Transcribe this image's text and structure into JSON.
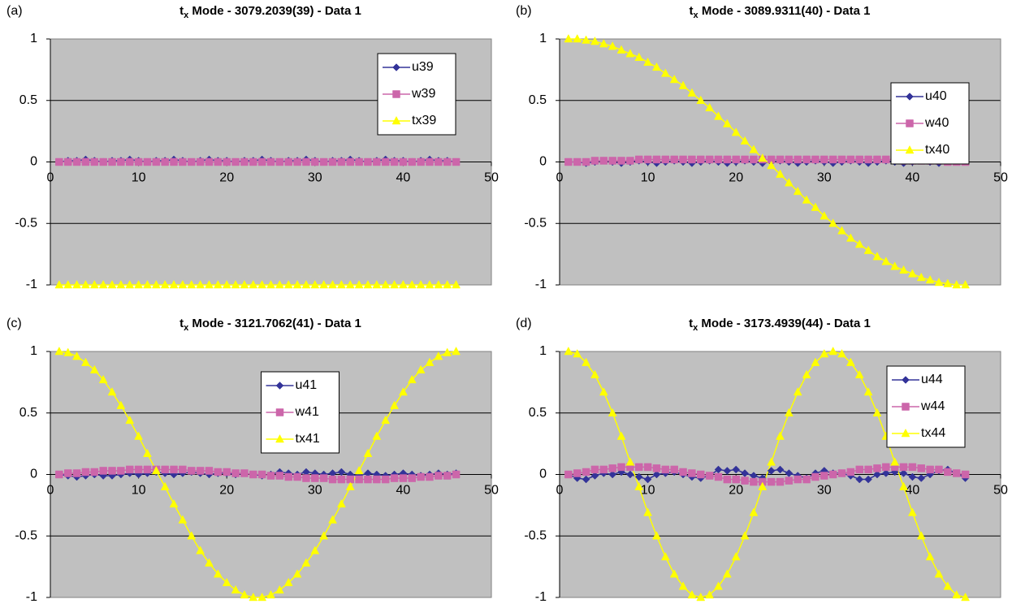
{
  "chart_data": [
    {
      "type": "line",
      "panel_label": "(a)",
      "title_prefix": "t",
      "title_subscript": "x",
      "title": " Mode - 3079.2039(39) - Data 1",
      "x": [
        1,
        2,
        3,
        4,
        5,
        6,
        7,
        8,
        9,
        10,
        11,
        12,
        13,
        14,
        15,
        16,
        17,
        18,
        19,
        20,
        21,
        22,
        23,
        24,
        25,
        26,
        27,
        28,
        29,
        30,
        31,
        32,
        33,
        34,
        35,
        36,
        37,
        38,
        39,
        40,
        41,
        42,
        43,
        44,
        45,
        46
      ],
      "xlim": [
        0,
        50
      ],
      "xticks": [
        0,
        10,
        20,
        30,
        40,
        50
      ],
      "ylim": [
        -1,
        1
      ],
      "yticks": [
        -1,
        -0.5,
        0,
        0.5,
        1
      ],
      "grid": true,
      "legend": "upper right",
      "series": [
        {
          "name": "u39",
          "color": "#333399",
          "marker": "diamond",
          "values": [
            0,
            0.01,
            0.01,
            0.02,
            0.01,
            0,
            0.01,
            0.01,
            0.02,
            0.01,
            0,
            0.01,
            0.01,
            0.02,
            0.01,
            0,
            0.01,
            0.02,
            0.01,
            0.01,
            0,
            0.01,
            0.01,
            0.02,
            0.01,
            0,
            0.01,
            0.01,
            0.02,
            0.01,
            0,
            0.01,
            0.01,
            0.02,
            0.01,
            0,
            0.01,
            0.02,
            0.01,
            0.01,
            0,
            0.01,
            0.02,
            0.01,
            0.01,
            0
          ]
        },
        {
          "name": "w39",
          "color": "#cc66aa",
          "marker": "square",
          "values": [
            0,
            0,
            0,
            0,
            0,
            0,
            0,
            0,
            0,
            0,
            0,
            0,
            0,
            0,
            0,
            0,
            0,
            0,
            0,
            0,
            0,
            0,
            0,
            0,
            0,
            0,
            0,
            0,
            0,
            0,
            0,
            0,
            0,
            0,
            0,
            0,
            0,
            0,
            0,
            0,
            0,
            0,
            0,
            0,
            0,
            0
          ]
        },
        {
          "name": "tx39",
          "color": "#ffff00",
          "marker": "triangle",
          "values": [
            -1,
            -1,
            -1,
            -1,
            -1,
            -1,
            -1,
            -1,
            -1,
            -1,
            -1,
            -1,
            -1,
            -1,
            -1,
            -1,
            -1,
            -1,
            -1,
            -1,
            -1,
            -1,
            -1,
            -1,
            -1,
            -1,
            -1,
            -1,
            -1,
            -1,
            -1,
            -1,
            -1,
            -1,
            -1,
            -1,
            -1,
            -1,
            -1,
            -1,
            -1,
            -1,
            -1,
            -1,
            -1,
            -1
          ]
        }
      ]
    },
    {
      "type": "line",
      "panel_label": "(b)",
      "title_prefix": "t",
      "title_subscript": "x",
      "title": " Mode - 3089.9311(40) - Data 1",
      "x": [
        1,
        2,
        3,
        4,
        5,
        6,
        7,
        8,
        9,
        10,
        11,
        12,
        13,
        14,
        15,
        16,
        17,
        18,
        19,
        20,
        21,
        22,
        23,
        24,
        25,
        26,
        27,
        28,
        29,
        30,
        31,
        32,
        33,
        34,
        35,
        36,
        37,
        38,
        39,
        40,
        41,
        42,
        43,
        44,
        45,
        46
      ],
      "xlim": [
        0,
        50
      ],
      "xticks": [
        0,
        10,
        20,
        30,
        40,
        50
      ],
      "ylim": [
        -1,
        1
      ],
      "yticks": [
        -1,
        -0.5,
        0,
        0.5,
        1
      ],
      "grid": true,
      "legend": "right",
      "series": [
        {
          "name": "u40",
          "color": "#333399",
          "marker": "diamond",
          "values": [
            0,
            0,
            -0.01,
            0,
            0.01,
            0,
            -0.01,
            0,
            0.01,
            0,
            -0.01,
            0,
            0.01,
            0,
            -0.01,
            0,
            0.01,
            0,
            -0.01,
            0,
            0.01,
            0,
            -0.01,
            0,
            0.01,
            0,
            -0.01,
            0,
            0.01,
            0,
            -0.01,
            0,
            0.01,
            0,
            -0.01,
            0,
            0.01,
            0,
            -0.01,
            0,
            0.01,
            0,
            -0.01,
            0,
            0.01,
            0.01
          ]
        },
        {
          "name": "w40",
          "color": "#cc66aa",
          "marker": "square",
          "values": [
            0,
            0,
            0,
            0.01,
            0.01,
            0.01,
            0.01,
            0.01,
            0.02,
            0.02,
            0.02,
            0.02,
            0.02,
            0.02,
            0.02,
            0.02,
            0.02,
            0.02,
            0.02,
            0.02,
            0.02,
            0.02,
            0.02,
            0.02,
            0.02,
            0.02,
            0.02,
            0.02,
            0.02,
            0.02,
            0.02,
            0.02,
            0.02,
            0.02,
            0.02,
            0.02,
            0.02,
            0.02,
            0.01,
            0.01,
            0.01,
            0.01,
            0.01,
            0,
            0,
            0
          ]
        },
        {
          "name": "tx40",
          "color": "#ffff00",
          "marker": "triangle",
          "values": [
            1,
            1,
            0.99,
            0.98,
            0.96,
            0.94,
            0.91,
            0.88,
            0.85,
            0.81,
            0.77,
            0.72,
            0.67,
            0.62,
            0.56,
            0.5,
            0.44,
            0.37,
            0.31,
            0.24,
            0.17,
            0.1,
            0.03,
            -0.03,
            -0.1,
            -0.17,
            -0.24,
            -0.31,
            -0.37,
            -0.44,
            -0.5,
            -0.56,
            -0.62,
            -0.67,
            -0.72,
            -0.77,
            -0.81,
            -0.85,
            -0.88,
            -0.91,
            -0.94,
            -0.96,
            -0.98,
            -0.99,
            -1,
            -1
          ]
        }
      ]
    },
    {
      "type": "line",
      "panel_label": "(c)",
      "title_prefix": "t",
      "title_subscript": "x",
      "title": " Mode - 3121.7062(41) - Data 1",
      "x": [
        1,
        2,
        3,
        4,
        5,
        6,
        7,
        8,
        9,
        10,
        11,
        12,
        13,
        14,
        15,
        16,
        17,
        18,
        19,
        20,
        21,
        22,
        23,
        24,
        25,
        26,
        27,
        28,
        29,
        30,
        31,
        32,
        33,
        34,
        35,
        36,
        37,
        38,
        39,
        40,
        41,
        42,
        43,
        44,
        45,
        46
      ],
      "xlim": [
        0,
        50
      ],
      "xticks": [
        0,
        10,
        20,
        30,
        40,
        50
      ],
      "ylim": [
        -1,
        1
      ],
      "yticks": [
        -1,
        -0.5,
        0,
        0.5,
        1
      ],
      "grid": true,
      "legend": "center",
      "series": [
        {
          "name": "u41",
          "color": "#333399",
          "marker": "diamond",
          "values": [
            0,
            -0.01,
            -0.02,
            -0.01,
            0,
            -0.01,
            -0.01,
            0,
            0.01,
            0,
            0.01,
            0.02,
            0.01,
            0,
            0.01,
            0.02,
            0.01,
            0,
            0.01,
            0.01,
            0,
            0.01,
            0,
            -0.01,
            0,
            0.02,
            0.01,
            0,
            0.02,
            0.01,
            0,
            0.01,
            0.02,
            0,
            -0.01,
            0.01,
            0,
            -0.01,
            0,
            0.01,
            0,
            -0.01,
            0,
            0.01,
            0,
            0.01
          ]
        },
        {
          "name": "w41",
          "color": "#cc66aa",
          "marker": "square",
          "values": [
            0,
            0.01,
            0.01,
            0.02,
            0.02,
            0.03,
            0.03,
            0.03,
            0.04,
            0.04,
            0.04,
            0.04,
            0.04,
            0.04,
            0.04,
            0.03,
            0.03,
            0.03,
            0.02,
            0.02,
            0.01,
            0.01,
            0,
            0,
            -0.01,
            -0.01,
            -0.02,
            -0.02,
            -0.03,
            -0.03,
            -0.03,
            -0.04,
            -0.04,
            -0.04,
            -0.04,
            -0.04,
            -0.04,
            -0.04,
            -0.03,
            -0.03,
            -0.03,
            -0.02,
            -0.02,
            -0.01,
            -0.01,
            0
          ]
        },
        {
          "name": "tx41",
          "color": "#ffff00",
          "marker": "triangle",
          "values": [
            1,
            0.99,
            0.96,
            0.91,
            0.85,
            0.77,
            0.67,
            0.56,
            0.44,
            0.31,
            0.17,
            0.03,
            -0.1,
            -0.24,
            -0.37,
            -0.5,
            -0.62,
            -0.72,
            -0.81,
            -0.88,
            -0.94,
            -0.98,
            -1,
            -1,
            -0.98,
            -0.94,
            -0.88,
            -0.81,
            -0.72,
            -0.62,
            -0.5,
            -0.37,
            -0.24,
            -0.1,
            0.03,
            0.17,
            0.31,
            0.44,
            0.56,
            0.67,
            0.77,
            0.85,
            0.91,
            0.96,
            0.99,
            1
          ]
        }
      ]
    },
    {
      "type": "line",
      "panel_label": "(d)",
      "title_prefix": "t",
      "title_subscript": "x",
      "title": " Mode - 3173.4939(44) - Data 1",
      "x": [
        1,
        2,
        3,
        4,
        5,
        6,
        7,
        8,
        9,
        10,
        11,
        12,
        13,
        14,
        15,
        16,
        17,
        18,
        19,
        20,
        21,
        22,
        23,
        24,
        25,
        26,
        27,
        28,
        29,
        30,
        31,
        32,
        33,
        34,
        35,
        36,
        37,
        38,
        39,
        40,
        41,
        42,
        43,
        44,
        45,
        46
      ],
      "xlim": [
        0,
        50
      ],
      "xticks": [
        0,
        10,
        20,
        30,
        40,
        50
      ],
      "ylim": [
        -1,
        1
      ],
      "yticks": [
        -1,
        -0.5,
        0,
        0.5,
        1
      ],
      "grid": true,
      "legend": "upper right",
      "series": [
        {
          "name": "u44",
          "color": "#333399",
          "marker": "diamond",
          "values": [
            0,
            -0.03,
            -0.04,
            -0.01,
            0.01,
            0,
            0.02,
            0,
            -0.02,
            -0.04,
            0,
            0.01,
            0.02,
            0,
            -0.02,
            -0.03,
            -0.01,
            0.04,
            0.03,
            0.04,
            0.01,
            -0.01,
            -0.03,
            0.03,
            0.04,
            0.01,
            -0.01,
            -0.03,
            0.01,
            0.03,
            0.01,
            0.01,
            -0.01,
            -0.04,
            -0.04,
            0,
            0.01,
            0.02,
            0.01,
            -0.02,
            -0.03,
            0,
            0.03,
            0.04,
            0.01,
            -0.03
          ]
        },
        {
          "name": "w44",
          "color": "#cc66aa",
          "marker": "square",
          "values": [
            0,
            0.01,
            0.02,
            0.04,
            0.04,
            0.05,
            0.06,
            0.06,
            0.06,
            0.06,
            0.05,
            0.04,
            0.04,
            0.02,
            0.01,
            0,
            -0.01,
            -0.02,
            -0.04,
            -0.04,
            -0.05,
            -0.06,
            -0.06,
            -0.06,
            -0.06,
            -0.05,
            -0.04,
            -0.04,
            -0.02,
            -0.01,
            0,
            0.01,
            0.02,
            0.04,
            0.04,
            0.05,
            0.06,
            0.06,
            0.06,
            0.06,
            0.05,
            0.04,
            0.04,
            0.02,
            0.01,
            0
          ]
        },
        {
          "name": "tx44",
          "color": "#ffff00",
          "marker": "triangle",
          "values": [
            1,
            0.98,
            0.91,
            0.81,
            0.67,
            0.5,
            0.31,
            0.1,
            -0.1,
            -0.31,
            -0.5,
            -0.67,
            -0.81,
            -0.91,
            -0.98,
            -1,
            -0.98,
            -0.91,
            -0.81,
            -0.67,
            -0.5,
            -0.31,
            -0.1,
            0.1,
            0.31,
            0.5,
            0.67,
            0.81,
            0.91,
            0.98,
            1,
            0.98,
            0.91,
            0.81,
            0.67,
            0.5,
            0.31,
            0.1,
            -0.1,
            -0.31,
            -0.5,
            -0.67,
            -0.81,
            -0.91,
            -0.98,
            -1
          ]
        }
      ]
    }
  ]
}
